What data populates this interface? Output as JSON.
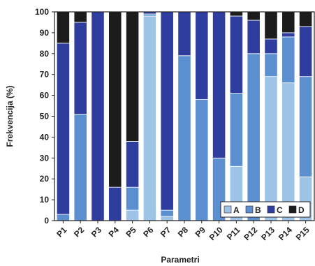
{
  "chart_data": {
    "type": "bar",
    "stacked": true,
    "categories": [
      "P1",
      "P2",
      "P3",
      "P4",
      "P5",
      "P6",
      "P7",
      "P8",
      "P9",
      "P10",
      "P11",
      "P12",
      "P13",
      "P14",
      "P15"
    ],
    "series": [
      {
        "name": "A",
        "color": "#9dc3e6",
        "values": [
          0,
          0,
          0,
          0,
          5,
          98,
          2,
          0,
          0,
          0,
          26,
          0,
          69,
          66,
          21
        ]
      },
      {
        "name": "B",
        "color": "#5b8fd0",
        "values": [
          3,
          51,
          0,
          0,
          11,
          1,
          3,
          79,
          58,
          30,
          35,
          80,
          11,
          22,
          48
        ]
      },
      {
        "name": "C",
        "color": "#2e3d9e",
        "values": [
          82,
          44,
          100,
          16,
          22,
          1,
          95,
          21,
          42,
          70,
          37,
          16,
          7,
          2,
          24
        ]
      },
      {
        "name": "D",
        "color": "#1c1c1c",
        "values": [
          15,
          5,
          0,
          84,
          62,
          0,
          0,
          0,
          0,
          0,
          2,
          4,
          13,
          10,
          7
        ]
      }
    ],
    "xlabel": "Parametri",
    "ylabel": "Frekvencija (%)",
    "ylim": [
      0,
      100
    ],
    "yticks": [
      0,
      10,
      20,
      30,
      40,
      50,
      60,
      70,
      80,
      90,
      100
    ],
    "legend_position": "bottom-right",
    "grid": false
  }
}
